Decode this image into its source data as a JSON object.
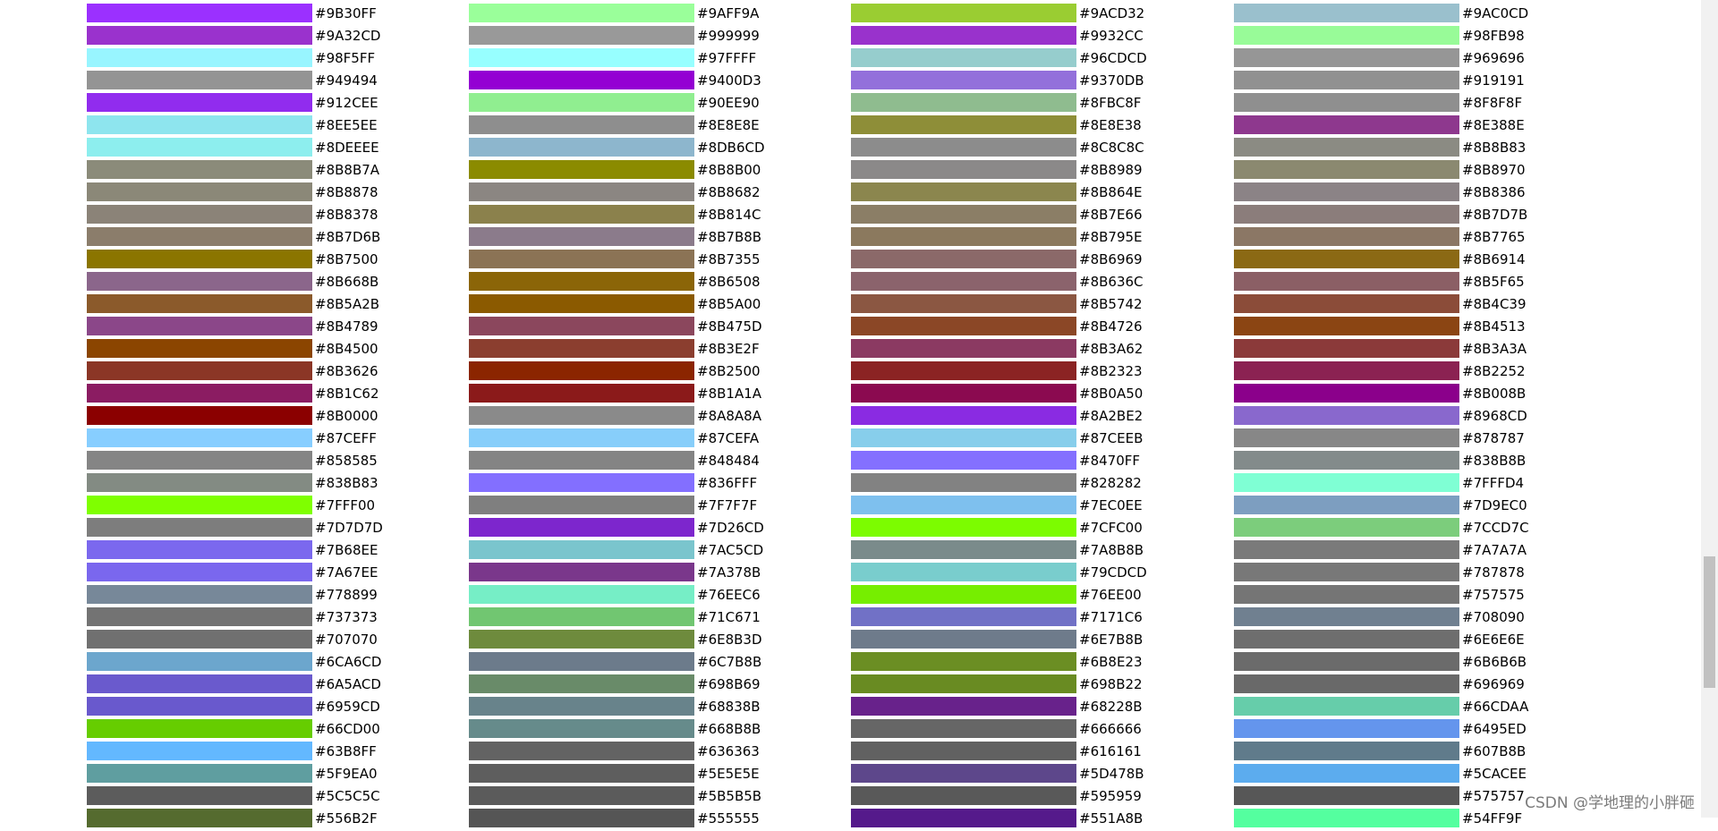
{
  "rows": [
    [
      "#9B30FF",
      "#9AFF9A",
      "#9ACD32",
      "#9AC0CD"
    ],
    [
      "#9A32CD",
      "#999999",
      "#9932CC",
      "#98FB98"
    ],
    [
      "#98F5FF",
      "#97FFFF",
      "#96CDCD",
      "#969696"
    ],
    [
      "#949494",
      "#9400D3",
      "#9370DB",
      "#919191"
    ],
    [
      "#912CEE",
      "#90EE90",
      "#8FBC8F",
      "#8F8F8F"
    ],
    [
      "#8EE5EE",
      "#8E8E8E",
      "#8E8E38",
      "#8E388E"
    ],
    [
      "#8DEEEE",
      "#8DB6CD",
      "#8C8C8C",
      "#8B8B83"
    ],
    [
      "#8B8B7A",
      "#8B8B00",
      "#8B8989",
      "#8B8970"
    ],
    [
      "#8B8878",
      "#8B8682",
      "#8B864E",
      "#8B8386"
    ],
    [
      "#8B8378",
      "#8B814C",
      "#8B7E66",
      "#8B7D7B"
    ],
    [
      "#8B7D6B",
      "#8B7B8B",
      "#8B795E",
      "#8B7765"
    ],
    [
      "#8B7500",
      "#8B7355",
      "#8B6969",
      "#8B6914"
    ],
    [
      "#8B668B",
      "#8B6508",
      "#8B636C",
      "#8B5F65"
    ],
    [
      "#8B5A2B",
      "#8B5A00",
      "#8B5742",
      "#8B4C39"
    ],
    [
      "#8B4789",
      "#8B475D",
      "#8B4726",
      "#8B4513"
    ],
    [
      "#8B4500",
      "#8B3E2F",
      "#8B3A62",
      "#8B3A3A"
    ],
    [
      "#8B3626",
      "#8B2500",
      "#8B2323",
      "#8B2252"
    ],
    [
      "#8B1C62",
      "#8B1A1A",
      "#8B0A50",
      "#8B008B"
    ],
    [
      "#8B0000",
      "#8A8A8A",
      "#8A2BE2",
      "#8968CD"
    ],
    [
      "#87CEFF",
      "#87CEFA",
      "#87CEEB",
      "#878787"
    ],
    [
      "#858585",
      "#848484",
      "#8470FF",
      "#838B8B"
    ],
    [
      "#838B83",
      "#836FFF",
      "#828282",
      "#7FFFD4"
    ],
    [
      "#7FFF00",
      "#7F7F7F",
      "#7EC0EE",
      "#7D9EC0"
    ],
    [
      "#7D7D7D",
      "#7D26CD",
      "#7CFC00",
      "#7CCD7C"
    ],
    [
      "#7B68EE",
      "#7AC5CD",
      "#7A8B8B",
      "#7A7A7A"
    ],
    [
      "#7A67EE",
      "#7A378B",
      "#79CDCD",
      "#787878"
    ],
    [
      "#778899",
      "#76EEC6",
      "#76EE00",
      "#757575"
    ],
    [
      "#737373",
      "#71C671",
      "#7171C6",
      "#708090"
    ],
    [
      "#707070",
      "#6E8B3D",
      "#6E7B8B",
      "#6E6E6E"
    ],
    [
      "#6CA6CD",
      "#6C7B8B",
      "#6B8E23",
      "#6B6B6B"
    ],
    [
      "#6A5ACD",
      "#698B69",
      "#698B22",
      "#696969"
    ],
    [
      "#6959CD",
      "#68838B",
      "#68228B",
      "#66CDAA"
    ],
    [
      "#66CD00",
      "#668B8B",
      "#666666",
      "#6495ED"
    ],
    [
      "#63B8FF",
      "#636363",
      "#616161",
      "#607B8B"
    ],
    [
      "#5F9EA0",
      "#5E5E5E",
      "#5D478B",
      "#5CACEE"
    ],
    [
      "#5C5C5C",
      "#5B5B5B",
      "#595959",
      "#575757"
    ],
    [
      "#556B2F",
      "#555555",
      "#551A8B",
      "#54FF9F"
    ]
  ],
  "watermark": "CSDN @学地理的小胖砸"
}
